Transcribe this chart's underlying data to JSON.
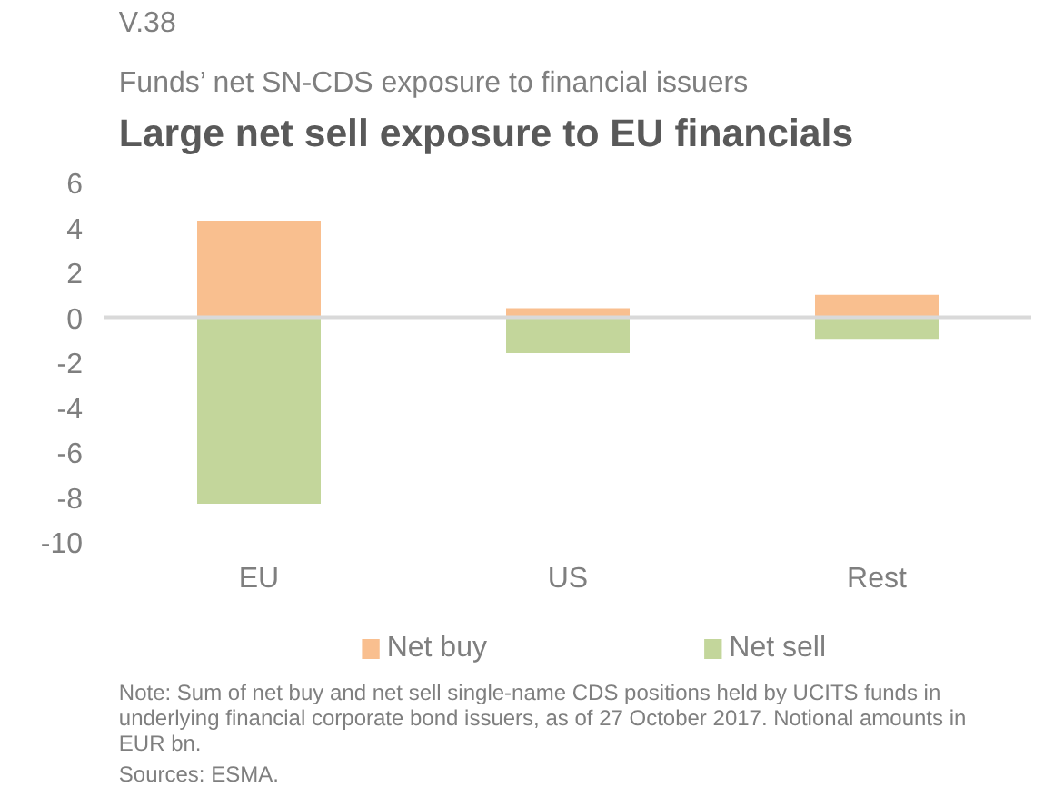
{
  "chart_data": {
    "type": "bar",
    "title": "Large net sell exposure to EU financials",
    "subtitle": "Funds’ net SN-CDS exposure to financial issuers",
    "categories": [
      "EU",
      "US",
      "Rest"
    ],
    "series": [
      {
        "name": "Net buy",
        "color": "#f9bf8f",
        "values": [
          4.3,
          0.4,
          1.0
        ]
      },
      {
        "name": "Net sell",
        "color": "#c3d69b",
        "values": [
          -8.3,
          -1.6,
          -1.0
        ]
      }
    ],
    "stacked": true,
    "ylim": [
      -10,
      6
    ],
    "yticks": [
      -10,
      -8,
      -6,
      -4,
      -2,
      0,
      2,
      4,
      6
    ],
    "grid": false,
    "legend": "bottom",
    "ref_lines": [
      {
        "axis": "y",
        "value": 0,
        "color": "#d9d9d9"
      }
    ],
    "annotations": [
      "V.38",
      "Note: Sum of net buy and net sell single-name CDS positions held by UCITS funds in underlying financial corporate bond issuers, as of 27 October 2017. Notional amounts in EUR bn.",
      "Sources: ESMA."
    ]
  }
}
